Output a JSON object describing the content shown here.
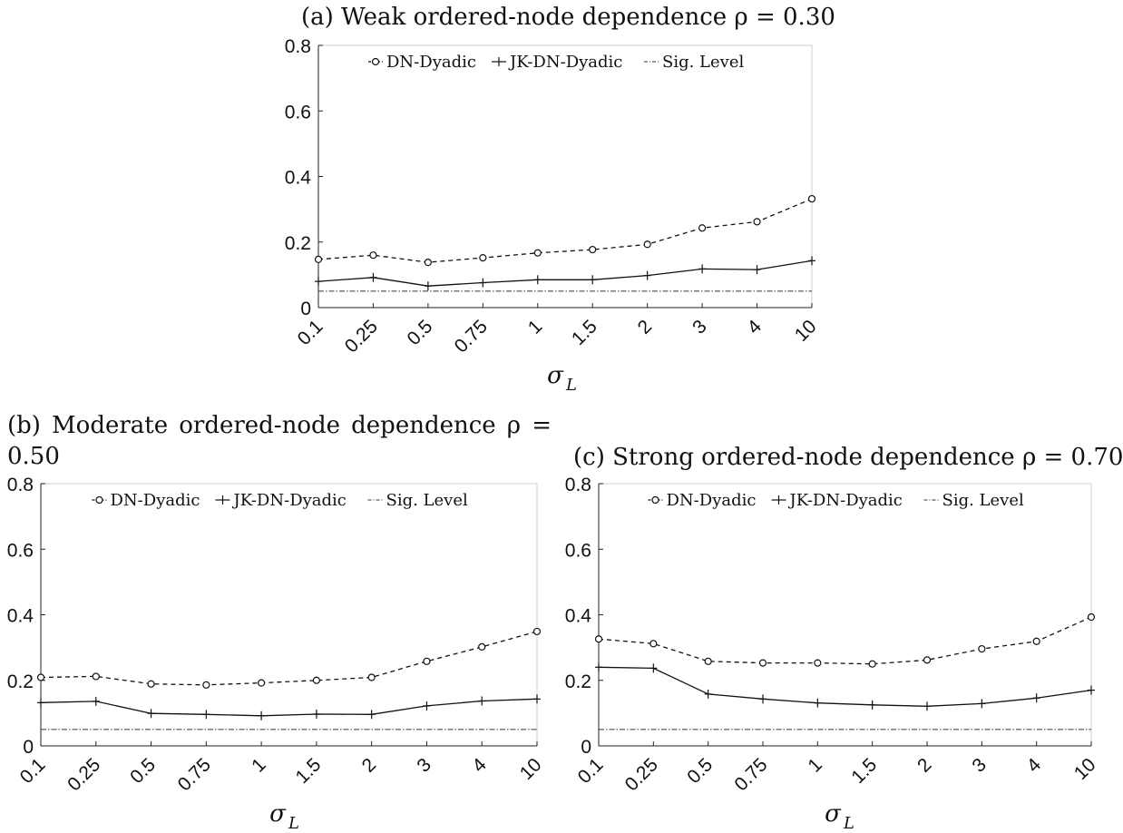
{
  "chart_data": [
    {
      "type": "line",
      "title": "(a) Weak ordered-node dependence ρ = 0.30",
      "xlabel": "σ",
      "xlabel_sub": "L",
      "categories": [
        "0.1",
        "0.25",
        "0.5",
        "0.75",
        "1",
        "1.5",
        "2",
        "3",
        "4",
        "10"
      ],
      "yticks": [
        "0",
        "0.2",
        "0.4",
        "0.6",
        "0.8"
      ],
      "ylim": [
        0,
        0.8
      ],
      "legend_position": "top",
      "series": [
        {
          "name": "DN-Dyadic",
          "style": "dashed",
          "marker": "circle",
          "values": [
            0.147,
            0.16,
            0.138,
            0.152,
            0.167,
            0.177,
            0.193,
            0.243,
            0.262,
            0.332
          ]
        },
        {
          "name": "JK-DN-Dyadic",
          "style": "solid",
          "marker": "plus",
          "values": [
            0.08,
            0.092,
            0.066,
            0.076,
            0.085,
            0.085,
            0.098,
            0.118,
            0.116,
            0.143
          ]
        },
        {
          "name": "Sig. Level",
          "style": "dashdot",
          "marker": "none",
          "values": [
            0.05,
            0.05,
            0.05,
            0.05,
            0.05,
            0.05,
            0.05,
            0.05,
            0.05,
            0.05
          ]
        }
      ]
    },
    {
      "type": "line",
      "title": "(b) Moderate ordered-node dependence ρ = 0.50",
      "xlabel": "σ",
      "xlabel_sub": "L",
      "categories": [
        "0.1",
        "0.25",
        "0.5",
        "0.75",
        "1",
        "1.5",
        "2",
        "3",
        "4",
        "10"
      ],
      "yticks": [
        "0",
        "0.2",
        "0.4",
        "0.6",
        "0.8"
      ],
      "ylim": [
        0,
        0.8
      ],
      "legend_position": "top",
      "series": [
        {
          "name": "DN-Dyadic",
          "style": "dashed",
          "marker": "circle",
          "values": [
            0.209,
            0.212,
            0.189,
            0.186,
            0.192,
            0.2,
            0.209,
            0.258,
            0.302,
            0.349
          ]
        },
        {
          "name": "JK-DN-Dyadic",
          "style": "solid",
          "marker": "plus",
          "values": [
            0.132,
            0.136,
            0.099,
            0.096,
            0.092,
            0.097,
            0.096,
            0.122,
            0.137,
            0.143
          ]
        },
        {
          "name": "Sig. Level",
          "style": "dashdot",
          "marker": "none",
          "values": [
            0.05,
            0.05,
            0.05,
            0.05,
            0.05,
            0.05,
            0.05,
            0.05,
            0.05,
            0.05
          ]
        }
      ]
    },
    {
      "type": "line",
      "title": "(c) Strong ordered-node dependence ρ = 0.70",
      "xlabel": "σ",
      "xlabel_sub": "L",
      "categories": [
        "0.1",
        "0.25",
        "0.5",
        "0.75",
        "1",
        "1.5",
        "2",
        "3",
        "4",
        "10"
      ],
      "yticks": [
        "0",
        "0.2",
        "0.4",
        "0.6",
        "0.8"
      ],
      "ylim": [
        0,
        0.8
      ],
      "legend_position": "top",
      "series": [
        {
          "name": "DN-Dyadic",
          "style": "dashed",
          "marker": "circle",
          "values": [
            0.326,
            0.312,
            0.258,
            0.253,
            0.253,
            0.25,
            0.262,
            0.296,
            0.319,
            0.393
          ]
        },
        {
          "name": "JK-DN-Dyadic",
          "style": "solid",
          "marker": "plus",
          "values": [
            0.24,
            0.237,
            0.158,
            0.143,
            0.131,
            0.125,
            0.121,
            0.129,
            0.146,
            0.17
          ]
        },
        {
          "name": "Sig. Level",
          "style": "dashdot",
          "marker": "none",
          "values": [
            0.05,
            0.05,
            0.05,
            0.05,
            0.05,
            0.05,
            0.05,
            0.05,
            0.05,
            0.05
          ]
        }
      ]
    }
  ]
}
